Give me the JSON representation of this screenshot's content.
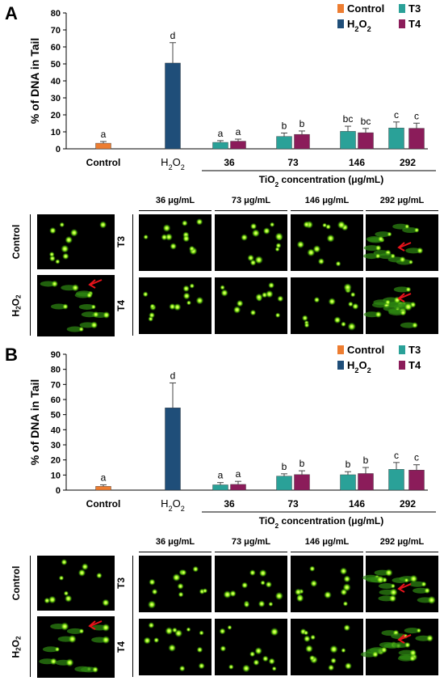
{
  "colors": {
    "Control": "#ed7d31",
    "H2O2": "#1f4e79",
    "T3": "#2aa198",
    "T4": "#8b1c5a"
  },
  "panels": [
    {
      "letter": "A",
      "chart_data": {
        "type": "bar",
        "ylabel": "% of DNA in Tail",
        "ylim": [
          0,
          80
        ],
        "yticks": [
          0,
          10,
          20,
          30,
          40,
          50,
          60,
          70,
          80
        ],
        "categories": [
          "Control",
          "H2O2",
          "36",
          "73",
          "146",
          "292"
        ],
        "xlabel": "TiO2 concentration (μg/mL)",
        "legend": [
          "Control",
          "H2O2",
          "T3",
          "T4"
        ],
        "legend_position": "top-right",
        "bars": [
          {
            "category": "Control",
            "series": "Control",
            "value": 3.3,
            "err": 1.0,
            "letter": "a"
          },
          {
            "category": "H2O2",
            "series": "H2O2",
            "value": 50.5,
            "err": 12.0,
            "letter": "d"
          },
          {
            "category": "36",
            "series": "T3",
            "value": 3.8,
            "err": 1.0,
            "letter": "a"
          },
          {
            "category": "36",
            "series": "T4",
            "value": 4.5,
            "err": 1.2,
            "letter": "a"
          },
          {
            "category": "73",
            "series": "T3",
            "value": 7.3,
            "err": 2.0,
            "letter": "b"
          },
          {
            "category": "73",
            "series": "T4",
            "value": 8.5,
            "err": 2.0,
            "letter": "b"
          },
          {
            "category": "146",
            "series": "T3",
            "value": 10.3,
            "err": 3.0,
            "letter": "bc"
          },
          {
            "category": "146",
            "series": "T4",
            "value": 9.5,
            "err": 2.5,
            "letter": "bc"
          },
          {
            "category": "292",
            "series": "T3",
            "value": 12.3,
            "err": 3.5,
            "letter": "c"
          },
          {
            "category": "292",
            "series": "T4",
            "value": 12.1,
            "err": 3.0,
            "letter": "c"
          }
        ]
      },
      "images": {
        "row_labels": {
          "control": "Control",
          "h2o2": "H2O2",
          "t3": "T3",
          "t4": "T4"
        },
        "conc_labels": [
          "36 μg/mL",
          "73 μg/mL",
          "146 μg/mL",
          "292 μg/mL"
        ]
      }
    },
    {
      "letter": "B",
      "chart_data": {
        "type": "bar",
        "ylabel": "% of DNA in Tail",
        "ylim": [
          0,
          90
        ],
        "yticks": [
          0,
          10,
          20,
          30,
          40,
          50,
          60,
          70,
          80,
          90
        ],
        "categories": [
          "Control",
          "H2O2",
          "36",
          "73",
          "146",
          "292"
        ],
        "xlabel": "TiO2 concentration (μg/mL)",
        "legend": [
          "Control",
          "H2O2",
          "T3",
          "T4"
        ],
        "legend_position": "top-right",
        "bars": [
          {
            "category": "Control",
            "series": "Control",
            "value": 2.5,
            "err": 1.0,
            "letter": "a"
          },
          {
            "category": "H2O2",
            "series": "H2O2",
            "value": 54.5,
            "err": 16.5,
            "letter": "d"
          },
          {
            "category": "36",
            "series": "T3",
            "value": 3.5,
            "err": 1.5,
            "letter": "a"
          },
          {
            "category": "36",
            "series": "T4",
            "value": 3.8,
            "err": 2.0,
            "letter": "a"
          },
          {
            "category": "73",
            "series": "T3",
            "value": 9.3,
            "err": 1.5,
            "letter": "b"
          },
          {
            "category": "73",
            "series": "T4",
            "value": 10.3,
            "err": 2.5,
            "letter": "b"
          },
          {
            "category": "146",
            "series": "T3",
            "value": 10.2,
            "err": 2.0,
            "letter": "b"
          },
          {
            "category": "146",
            "series": "T4",
            "value": 11.0,
            "err": 4.0,
            "letter": "b"
          },
          {
            "category": "292",
            "series": "T3",
            "value": 13.8,
            "err": 4.5,
            "letter": "c"
          },
          {
            "category": "292",
            "series": "T4",
            "value": 13.3,
            "err": 3.5,
            "letter": "c"
          }
        ]
      },
      "images": {
        "row_labels": {
          "control": "Control",
          "h2o2": "H2O2",
          "t3": "T3",
          "t4": "T4"
        },
        "conc_labels": [
          "36 μg/mL",
          "73 μg/mL",
          "146 μg/mL",
          "292 μg/mL"
        ]
      }
    }
  ]
}
